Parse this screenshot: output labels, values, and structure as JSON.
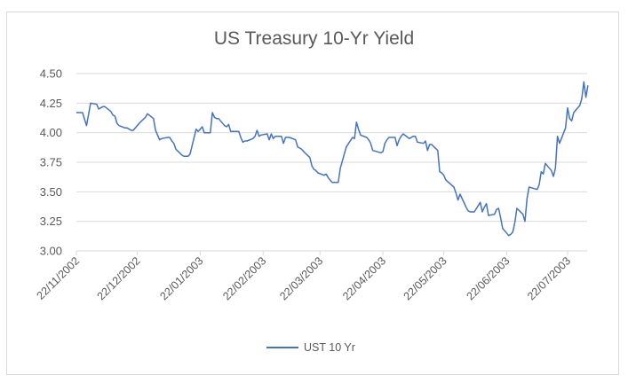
{
  "chart_data": {
    "type": "line",
    "title": "US Treasury 10-Yr Yield",
    "xlabel": "",
    "ylabel": "",
    "ylim": [
      3.0,
      4.5
    ],
    "y_ticks": [
      "4.50",
      "4.25",
      "4.00",
      "3.75",
      "3.50",
      "3.25",
      "3.00"
    ],
    "x_ticks": [
      "22/11/2002",
      "22/12/2002",
      "22/01/2003",
      "22/02/2003",
      "22/03/2003",
      "22/04/2003",
      "22/05/2003",
      "22/06/2003",
      "22/07/2003"
    ],
    "grid": "horizontal",
    "legend_position": "bottom",
    "series": [
      {
        "name": "UST 10 Yr",
        "color": "#4472c4",
        "approx_points": [
          [
            "22/11/2002",
            4.17
          ],
          [
            "25/11/2002",
            4.17
          ],
          [
            "27/11/2002",
            4.06
          ],
          [
            "29/11/2002",
            4.25
          ],
          [
            "02/12/2002",
            4.24
          ],
          [
            "03/12/2002",
            4.2
          ],
          [
            "05/12/2002",
            4.22
          ],
          [
            "06/12/2002",
            4.22
          ],
          [
            "09/12/2002",
            4.18
          ],
          [
            "10/12/2002",
            4.15
          ],
          [
            "11/12/2002",
            4.14
          ],
          [
            "12/12/2002",
            4.08
          ],
          [
            "13/12/2002",
            4.06
          ],
          [
            "16/12/2002",
            4.04
          ],
          [
            "17/12/2002",
            4.04
          ],
          [
            "18/12/2002",
            4.03
          ],
          [
            "19/12/2002",
            4.02
          ],
          [
            "20/12/2002",
            4.02
          ],
          [
            "23/12/2002",
            4.08
          ],
          [
            "26/12/2002",
            4.13
          ],
          [
            "27/12/2002",
            4.16
          ],
          [
            "30/12/2002",
            4.12
          ],
          [
            "31/12/2002",
            4.02
          ],
          [
            "02/01/2003",
            3.94
          ],
          [
            "03/01/2003",
            3.95
          ],
          [
            "06/01/2003",
            3.96
          ],
          [
            "07/01/2003",
            3.96
          ],
          [
            "08/01/2003",
            3.93
          ],
          [
            "09/01/2003",
            3.91
          ],
          [
            "10/01/2003",
            3.86
          ],
          [
            "13/01/2003",
            3.81
          ],
          [
            "14/01/2003",
            3.8
          ],
          [
            "15/01/2003",
            3.8
          ],
          [
            "16/01/2003",
            3.8
          ],
          [
            "17/01/2003",
            3.82
          ],
          [
            "20/01/2003",
            4.03
          ],
          [
            "21/01/2003",
            4.01
          ],
          [
            "22/01/2003",
            4.03
          ],
          [
            "23/01/2003",
            4.05
          ],
          [
            "24/01/2003",
            4.0
          ],
          [
            "27/01/2003",
            4.0
          ],
          [
            "28/01/2003",
            4.17
          ],
          [
            "29/01/2003",
            4.13
          ],
          [
            "30/01/2003",
            4.12
          ],
          [
            "31/01/2003",
            4.12
          ],
          [
            "03/02/2003",
            4.06
          ],
          [
            "04/02/2003",
            4.05
          ],
          [
            "05/02/2003",
            4.07
          ],
          [
            "06/02/2003",
            4.01
          ],
          [
            "07/02/2003",
            4.01
          ],
          [
            "10/02/2003",
            4.01
          ],
          [
            "11/02/2003",
            3.96
          ],
          [
            "12/02/2003",
            3.92
          ],
          [
            "13/02/2003",
            3.93
          ],
          [
            "14/02/2003",
            3.93
          ],
          [
            "17/02/2003",
            3.95
          ],
          [
            "18/02/2003",
            3.97
          ],
          [
            "19/02/2003",
            4.02
          ],
          [
            "20/02/2003",
            3.97
          ],
          [
            "21/02/2003",
            3.98
          ],
          [
            "24/02/2003",
            3.99
          ],
          [
            "25/02/2003",
            3.94
          ],
          [
            "26/02/2003",
            3.99
          ],
          [
            "27/02/2003",
            3.95
          ],
          [
            "28/02/2003",
            3.97
          ],
          [
            "03/03/2003",
            3.97
          ],
          [
            "04/03/2003",
            3.91
          ],
          [
            "05/03/2003",
            3.96
          ],
          [
            "06/03/2003",
            3.96
          ],
          [
            "07/03/2003",
            3.96
          ],
          [
            "10/03/2003",
            3.94
          ],
          [
            "11/03/2003",
            3.88
          ],
          [
            "12/03/2003",
            3.87
          ],
          [
            "13/03/2003",
            3.86
          ],
          [
            "14/03/2003",
            3.84
          ],
          [
            "17/03/2003",
            3.79
          ],
          [
            "18/03/2003",
            3.72
          ],
          [
            "19/03/2003",
            3.69
          ],
          [
            "20/03/2003",
            3.68
          ],
          [
            "21/03/2003",
            3.66
          ],
          [
            "24/03/2003",
            3.64
          ],
          [
            "25/03/2003",
            3.65
          ],
          [
            "26/03/2003",
            3.62
          ],
          [
            "27/03/2003",
            3.6
          ],
          [
            "28/03/2003",
            3.58
          ],
          [
            "31/03/2003",
            3.58
          ],
          [
            "01/04/2003",
            3.7
          ],
          [
            "02/04/2003",
            3.76
          ],
          [
            "03/04/2003",
            3.82
          ],
          [
            "04/04/2003",
            3.88
          ],
          [
            "07/04/2003",
            3.96
          ],
          [
            "08/04/2003",
            3.95
          ],
          [
            "09/04/2003",
            4.09
          ],
          [
            "10/04/2003",
            4.03
          ],
          [
            "11/04/2003",
            3.98
          ],
          [
            "14/04/2003",
            3.96
          ],
          [
            "15/04/2003",
            3.94
          ],
          [
            "16/04/2003",
            3.91
          ],
          [
            "17/04/2003",
            3.85
          ],
          [
            "21/04/2003",
            3.83
          ],
          [
            "22/04/2003",
            3.84
          ],
          [
            "23/04/2003",
            3.91
          ],
          [
            "24/04/2003",
            3.94
          ],
          [
            "25/04/2003",
            3.96
          ],
          [
            "28/04/2003",
            3.96
          ],
          [
            "29/04/2003",
            3.89
          ],
          [
            "30/04/2003",
            3.94
          ],
          [
            "01/05/2003",
            3.97
          ],
          [
            "02/05/2003",
            3.99
          ],
          [
            "05/05/2003",
            3.95
          ],
          [
            "06/05/2003",
            3.96
          ],
          [
            "07/05/2003",
            3.97
          ],
          [
            "08/05/2003",
            3.97
          ],
          [
            "09/05/2003",
            3.92
          ],
          [
            "12/05/2003",
            3.91
          ],
          [
            "13/05/2003",
            3.93
          ],
          [
            "14/05/2003",
            3.85
          ],
          [
            "15/05/2003",
            3.9
          ],
          [
            "16/05/2003",
            3.9
          ],
          [
            "19/05/2003",
            3.85
          ],
          [
            "20/05/2003",
            3.67
          ],
          [
            "21/05/2003",
            3.66
          ],
          [
            "22/05/2003",
            3.64
          ],
          [
            "23/05/2003",
            3.6
          ],
          [
            "27/05/2003",
            3.54
          ],
          [
            "28/05/2003",
            3.49
          ],
          [
            "29/05/2003",
            3.43
          ],
          [
            "30/05/2003",
            3.48
          ],
          [
            "02/06/2003",
            3.37
          ],
          [
            "03/06/2003",
            3.34
          ],
          [
            "04/06/2003",
            3.33
          ],
          [
            "05/06/2003",
            3.33
          ],
          [
            "06/06/2003",
            3.33
          ],
          [
            "09/06/2003",
            3.41
          ],
          [
            "10/06/2003",
            3.33
          ],
          [
            "11/06/2003",
            3.37
          ],
          [
            "12/06/2003",
            3.4
          ],
          [
            "13/06/2003",
            3.3
          ],
          [
            "16/06/2003",
            3.31
          ],
          [
            "17/06/2003",
            3.35
          ],
          [
            "18/06/2003",
            3.36
          ],
          [
            "19/06/2003",
            3.28
          ],
          [
            "20/06/2003",
            3.19
          ],
          [
            "23/06/2003",
            3.13
          ],
          [
            "24/06/2003",
            3.14
          ],
          [
            "25/06/2003",
            3.16
          ],
          [
            "26/06/2003",
            3.24
          ],
          [
            "27/06/2003",
            3.36
          ],
          [
            "30/06/2003",
            3.31
          ],
          [
            "01/07/2003",
            3.25
          ],
          [
            "02/07/2003",
            3.44
          ],
          [
            "03/07/2003",
            3.54
          ],
          [
            "07/07/2003",
            3.52
          ],
          [
            "08/07/2003",
            3.56
          ],
          [
            "09/07/2003",
            3.67
          ],
          [
            "10/07/2003",
            3.65
          ],
          [
            "11/07/2003",
            3.74
          ],
          [
            "14/07/2003",
            3.68
          ],
          [
            "15/07/2003",
            3.63
          ],
          [
            "16/07/2003",
            3.7
          ],
          [
            "17/07/2003",
            3.97
          ],
          [
            "18/07/2003",
            3.91
          ],
          [
            "21/07/2003",
            4.04
          ],
          [
            "22/07/2003",
            4.21
          ],
          [
            "23/07/2003",
            4.12
          ],
          [
            "24/07/2003",
            4.1
          ],
          [
            "25/07/2003",
            4.17
          ],
          [
            "28/07/2003",
            4.23
          ],
          [
            "29/07/2003",
            4.29
          ],
          [
            "30/07/2003",
            4.43
          ],
          [
            "31/07/2003",
            4.3
          ],
          [
            "01/08/2003",
            4.4
          ]
        ]
      }
    ]
  },
  "legend": {
    "label": "UST 10 Yr"
  }
}
